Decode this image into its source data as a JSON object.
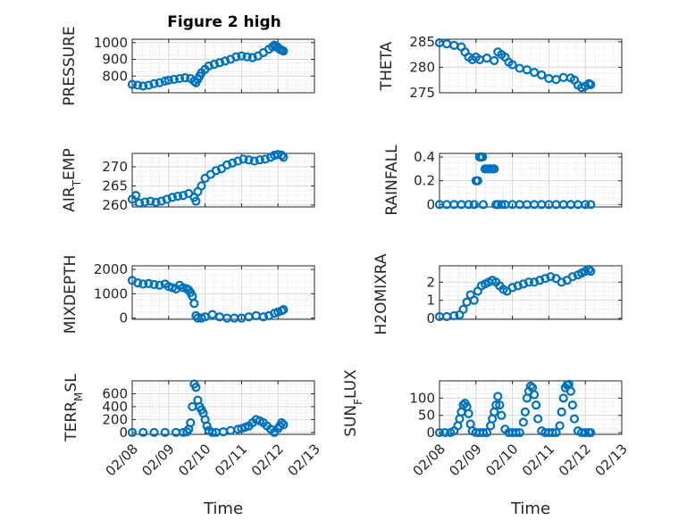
{
  "figure": {
    "title": "Figure 2 high",
    "marker_color": "#0072BD"
  },
  "chart_data": [
    {
      "type": "scatter",
      "name": "pressure",
      "title": "Figure 2 high",
      "ylabel": "PRESSURE",
      "xlabel": "",
      "xlim": [
        0,
        5
      ],
      "ylim": [
        700,
        1020
      ],
      "yticks": [
        800,
        900,
        1000
      ],
      "x": [
        0.0,
        0.15,
        0.3,
        0.45,
        0.6,
        0.75,
        0.9,
        1.0,
        1.15,
        1.3,
        1.45,
        1.6,
        1.7,
        1.75,
        1.8,
        1.85,
        1.9,
        2.0,
        2.1,
        2.25,
        2.4,
        2.55,
        2.7,
        2.85,
        3.0,
        3.15,
        3.3,
        3.45,
        3.6,
        3.75,
        3.85,
        3.9,
        3.95,
        4.0,
        4.05,
        4.1,
        4.15
      ],
      "y": [
        750,
        745,
        740,
        745,
        755,
        760,
        770,
        775,
        780,
        785,
        790,
        785,
        770,
        760,
        780,
        800,
        820,
        840,
        860,
        870,
        880,
        890,
        900,
        915,
        920,
        915,
        910,
        920,
        940,
        960,
        975,
        985,
        980,
        970,
        960,
        955,
        950
      ]
    },
    {
      "type": "scatter",
      "name": "theta",
      "ylabel": "THETA",
      "xlabel": "",
      "xlim": [
        0,
        5
      ],
      "ylim": [
        275,
        285.5
      ],
      "yticks": [
        275,
        280,
        285
      ],
      "x": [
        0.0,
        0.2,
        0.4,
        0.6,
        0.7,
        0.8,
        0.9,
        1.0,
        1.1,
        1.3,
        1.5,
        1.6,
        1.7,
        1.8,
        1.9,
        2.0,
        2.2,
        2.4,
        2.6,
        2.8,
        3.0,
        3.2,
        3.4,
        3.6,
        3.7,
        3.8,
        3.9,
        4.0,
        4.1,
        4.15
      ],
      "y": [
        284.8,
        284.6,
        284.3,
        284.0,
        283.0,
        282.0,
        281.5,
        282.0,
        281.5,
        281.8,
        281.3,
        283.0,
        282.5,
        282.0,
        281.0,
        280.5,
        279.8,
        279.5,
        279.0,
        278.5,
        277.8,
        277.6,
        278.0,
        277.9,
        277.5,
        276.5,
        276.0,
        276.3,
        276.8,
        276.6
      ]
    },
    {
      "type": "scatter",
      "name": "air-temp",
      "ylabel": "AIR_TEMP",
      "xlabel": "",
      "xlim": [
        0,
        5
      ],
      "ylim": [
        259.5,
        273.5
      ],
      "yticks": [
        260,
        265,
        270
      ],
      "x": [
        0.0,
        0.1,
        0.2,
        0.35,
        0.5,
        0.65,
        0.8,
        0.95,
        1.1,
        1.25,
        1.4,
        1.55,
        1.7,
        1.75,
        1.8,
        1.9,
        2.0,
        2.15,
        2.3,
        2.45,
        2.6,
        2.75,
        2.9,
        3.05,
        3.2,
        3.35,
        3.5,
        3.65,
        3.8,
        3.9,
        4.0,
        4.1,
        4.15
      ],
      "y": [
        261.5,
        262.5,
        260.5,
        260.8,
        261.0,
        260.7,
        261.0,
        261.5,
        262.0,
        262.3,
        262.5,
        263.0,
        262.0,
        261.0,
        263.5,
        265.0,
        267.0,
        268.0,
        269.0,
        269.5,
        270.5,
        271.0,
        271.5,
        272.0,
        271.8,
        271.5,
        271.8,
        272.0,
        272.5,
        273.0,
        273.2,
        273.0,
        272.5
      ]
    },
    {
      "type": "scatter",
      "name": "rainfall",
      "ylabel": "RAINFALL",
      "xlabel": "",
      "xlim": [
        0,
        5
      ],
      "ylim": [
        -0.02,
        0.43
      ],
      "yticks": [
        0,
        0.2,
        0.4
      ],
      "x": [
        0.0,
        0.2,
        0.4,
        0.6,
        0.8,
        0.95,
        1.0,
        1.05,
        1.1,
        1.12,
        1.15,
        1.18,
        1.2,
        1.25,
        1.3,
        1.35,
        1.4,
        1.45,
        1.5,
        1.55,
        1.6,
        1.7,
        1.8,
        2.0,
        2.2,
        2.4,
        2.6,
        2.8,
        3.0,
        3.2,
        3.4,
        3.6,
        3.8,
        4.0,
        4.15
      ],
      "y": [
        0,
        0,
        0,
        0,
        0,
        0,
        0.2,
        0.2,
        0.4,
        0.4,
        0.4,
        0.4,
        0,
        0.3,
        0.3,
        0.3,
        0.3,
        0.3,
        0.3,
        0,
        0,
        0,
        0,
        0,
        0,
        0,
        0,
        0,
        0,
        0,
        0,
        0,
        0,
        0,
        0
      ]
    },
    {
      "type": "scatter",
      "name": "mixdepth",
      "ylabel": "MIXDEPTH",
      "xlabel": "",
      "xlim": [
        0,
        5
      ],
      "ylim": [
        -50,
        2150
      ],
      "yticks": [
        0,
        1000,
        2000
      ],
      "x": [
        0.0,
        0.15,
        0.3,
        0.45,
        0.6,
        0.75,
        0.9,
        1.0,
        1.1,
        1.2,
        1.3,
        1.4,
        1.5,
        1.55,
        1.6,
        1.65,
        1.7,
        1.75,
        1.8,
        1.9,
        2.0,
        2.2,
        2.4,
        2.6,
        2.8,
        3.0,
        3.2,
        3.4,
        3.6,
        3.75,
        3.9,
        4.0,
        4.1,
        4.15
      ],
      "y": [
        1550,
        1450,
        1400,
        1420,
        1380,
        1350,
        1400,
        1300,
        1250,
        1200,
        1350,
        1250,
        1200,
        1150,
        1050,
        900,
        600,
        100,
        0,
        0,
        50,
        150,
        50,
        0,
        0,
        0,
        50,
        100,
        50,
        100,
        200,
        250,
        300,
        350
      ]
    },
    {
      "type": "scatter",
      "name": "h2omixra",
      "ylabel": "H2OMIXRA",
      "xlabel": "",
      "xlim": [
        0,
        5
      ],
      "ylim": [
        -0.05,
        2.9
      ],
      "yticks": [
        0,
        1,
        2
      ],
      "x": [
        0.0,
        0.2,
        0.4,
        0.55,
        0.65,
        0.75,
        0.85,
        0.95,
        1.05,
        1.15,
        1.25,
        1.35,
        1.45,
        1.55,
        1.65,
        1.75,
        1.85,
        2.0,
        2.15,
        2.3,
        2.45,
        2.6,
        2.75,
        2.9,
        3.05,
        3.2,
        3.35,
        3.5,
        3.65,
        3.8,
        3.9,
        4.0,
        4.1,
        4.15
      ],
      "y": [
        0.1,
        0.1,
        0.15,
        0.2,
        0.5,
        0.9,
        1.3,
        1.0,
        1.5,
        1.8,
        1.9,
        2.0,
        2.1,
        2.0,
        1.8,
        1.6,
        1.5,
        1.7,
        1.8,
        1.9,
        2.0,
        2.0,
        2.1,
        2.2,
        2.3,
        2.2,
        2.0,
        2.1,
        2.3,
        2.4,
        2.5,
        2.6,
        2.7,
        2.6
      ]
    },
    {
      "type": "scatter",
      "name": "terr-msl",
      "ylabel": "TERR_MSL",
      "xlabel": "Time",
      "xlim": [
        0,
        5
      ],
      "ylim": [
        -30,
        800
      ],
      "yticks": [
        0,
        200,
        400,
        600
      ],
      "xticks": [
        0,
        1,
        2,
        3,
        4,
        5
      ],
      "xticklabels": [
        "02/08",
        "02/09",
        "02/10",
        "02/11",
        "02/12",
        "02/13"
      ],
      "x": [
        0.0,
        0.3,
        0.6,
        0.9,
        1.2,
        1.4,
        1.5,
        1.55,
        1.6,
        1.65,
        1.7,
        1.75,
        1.8,
        1.85,
        1.9,
        1.95,
        2.0,
        2.05,
        2.1,
        2.2,
        2.3,
        2.5,
        2.7,
        2.9,
        3.0,
        3.1,
        3.2,
        3.3,
        3.4,
        3.5,
        3.6,
        3.7,
        3.8,
        3.9,
        4.0,
        4.05,
        4.1,
        4.15
      ],
      "y": [
        0,
        0,
        0,
        0,
        0,
        0,
        10,
        50,
        150,
        400,
        750,
        700,
        500,
        400,
        350,
        300,
        200,
        100,
        30,
        0,
        0,
        10,
        30,
        50,
        60,
        80,
        100,
        150,
        200,
        180,
        150,
        100,
        50,
        0,
        60,
        100,
        150,
        120
      ]
    },
    {
      "type": "scatter",
      "name": "sun-flux",
      "ylabel": "SUN_FLUX",
      "xlabel": "Time",
      "xlim": [
        0,
        5
      ],
      "ylim": [
        -5,
        150
      ],
      "yticks": [
        0,
        50,
        100
      ],
      "xticks": [
        0,
        1,
        2,
        3,
        4,
        5
      ],
      "xticklabels": [
        "02/08",
        "02/09",
        "02/10",
        "02/11",
        "02/12",
        "02/13"
      ],
      "x": [
        0.0,
        0.15,
        0.3,
        0.4,
        0.5,
        0.55,
        0.6,
        0.65,
        0.7,
        0.75,
        0.8,
        0.85,
        0.9,
        1.0,
        1.1,
        1.2,
        1.3,
        1.4,
        1.45,
        1.5,
        1.55,
        1.6,
        1.65,
        1.7,
        1.8,
        1.9,
        2.0,
        2.1,
        2.2,
        2.3,
        2.35,
        2.4,
        2.45,
        2.5,
        2.55,
        2.6,
        2.65,
        2.7,
        2.8,
        2.9,
        3.0,
        3.1,
        3.2,
        3.3,
        3.35,
        3.4,
        3.45,
        3.5,
        3.55,
        3.6,
        3.65,
        3.7,
        3.8,
        3.9,
        4.0,
        4.1,
        4.15
      ],
      "y": [
        0,
        0,
        0,
        5,
        20,
        40,
        60,
        80,
        85,
        75,
        55,
        25,
        5,
        0,
        0,
        0,
        0,
        20,
        40,
        60,
        80,
        105,
        80,
        50,
        10,
        0,
        0,
        0,
        0,
        30,
        60,
        100,
        120,
        135,
        130,
        110,
        80,
        40,
        5,
        0,
        0,
        0,
        0,
        20,
        60,
        100,
        130,
        138,
        140,
        120,
        80,
        40,
        5,
        0,
        0,
        0,
        0
      ]
    }
  ]
}
